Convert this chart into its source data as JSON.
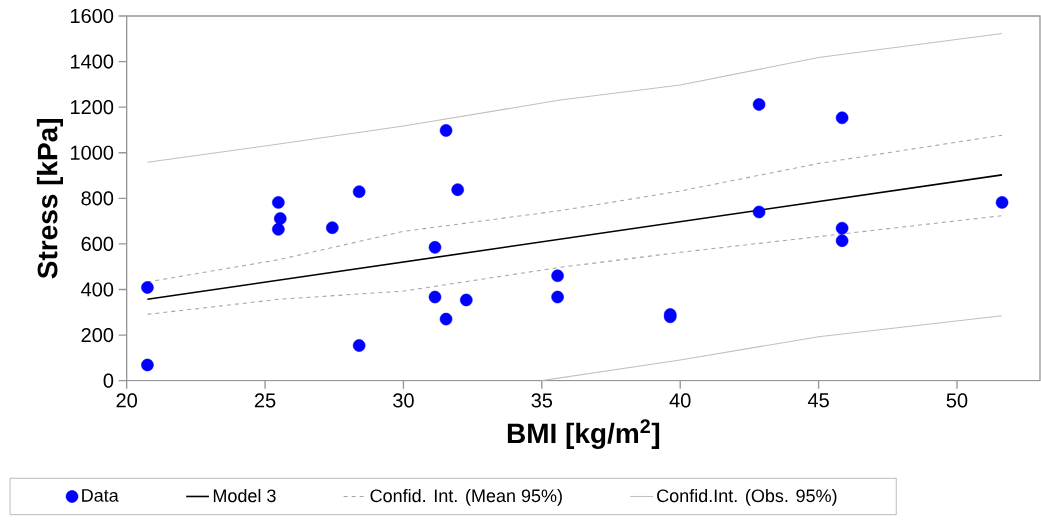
{
  "chart_data": {
    "type": "scatter",
    "xlabel": "BMI [kg/m$^{2}$]",
    "ylabel": "Stress [kPa]",
    "xlim": [
      20,
      53
    ],
    "ylim": [
      0,
      1600
    ],
    "xticks": [
      20,
      25,
      30,
      35,
      40,
      45,
      50
    ],
    "yticks": [
      0,
      200,
      400,
      600,
      800,
      1000,
      1200,
      1400,
      1600
    ],
    "grid": false,
    "legend": "bottom",
    "series": [
      {
        "name": "Data",
        "type": "scatter",
        "marker": "circle",
        "color": "#0000ff",
        "x": [
          20.75,
          20.75,
          25.48,
          25.55,
          25.48,
          27.43,
          28.4,
          28.4,
          31.14,
          31.14,
          31.54,
          31.54,
          31.96,
          32.27,
          35.57,
          35.57,
          39.64,
          39.64,
          42.85,
          42.85,
          45.85,
          45.85,
          45.85,
          51.63
        ],
        "values": [
          409,
          69,
          782,
          711,
          664,
          671,
          829,
          154,
          585,
          367,
          1098,
          270,
          838,
          354,
          460,
          367,
          290,
          280,
          1212,
          740,
          1153,
          669,
          614,
          782
        ]
      },
      {
        "name": "Model 3",
        "type": "line",
        "marker": "none",
        "line_style": "solid",
        "color": "#000000",
        "x": [
          20.75,
          51.63
        ],
        "values": [
          357,
          903
        ]
      },
      {
        "name": "Confid. Int. (Mean 95%)",
        "type": "line",
        "marker": "none",
        "line_style": "dashed",
        "color": "#a6a6a6",
        "x": [
          20.75,
          25.5,
          30,
          35.66,
          40,
          45,
          51.63
        ],
        "values": [
          433,
          531,
          655,
          746,
          832,
          953,
          1077
        ]
      },
      {
        "type": "line",
        "marker": "none",
        "line_style": "dashed",
        "color": "#a6a6a6",
        "x": [
          20.75,
          25.5,
          30,
          35.66,
          40,
          45,
          51.63
        ],
        "values": [
          291,
          357,
          393,
          497,
          563,
          632,
          724
        ]
      },
      {
        "name": "Confid.Int. (Obs. 95%)",
        "type": "line",
        "marker": "none",
        "line_style": "solid",
        "color": "#c0c0c0",
        "x": [
          20.75,
          25.5,
          30,
          35.66,
          40,
          45,
          51.63
        ],
        "values": [
          958,
          1038,
          1117,
          1231,
          1297,
          1418,
          1523
        ]
      },
      {
        "type": "line",
        "marker": "none",
        "line_style": "solid",
        "color": "#c0c0c0",
        "x": [
          35.0,
          40,
          45,
          51.63
        ],
        "values": [
          0,
          91,
          193,
          285
        ]
      }
    ]
  }
}
